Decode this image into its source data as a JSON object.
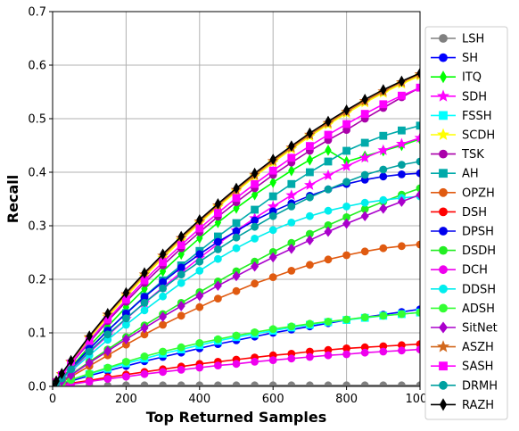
{
  "chart_data": {
    "type": "line",
    "xlabel": "Top Returned Samples",
    "ylabel": "Recall",
    "xlim": [
      0,
      1000
    ],
    "ylim": [
      0,
      0.7
    ],
    "xticks": [
      0,
      200,
      400,
      600,
      800,
      1000
    ],
    "yticks": [
      0.0,
      0.1,
      0.2,
      0.3,
      0.4,
      0.5,
      0.6,
      0.7
    ],
    "grid": true,
    "legend_position": "right",
    "x": [
      0,
      10,
      25,
      50,
      100,
      150,
      200,
      250,
      300,
      350,
      400,
      450,
      500,
      550,
      600,
      650,
      700,
      750,
      800,
      850,
      900,
      950,
      1000
    ],
    "series": [
      {
        "name": "LSH",
        "color": "#808080",
        "marker": "circle",
        "values": [
          0,
          0,
          0,
          0.001,
          0.001,
          0.001,
          0.002,
          0.002,
          0.002,
          0.002,
          0.002,
          0.002,
          0.002,
          0.002,
          0.002,
          0.002,
          0.002,
          0.002,
          0.002,
          0.002,
          0.002,
          0.002,
          0.002
        ]
      },
      {
        "name": "SH",
        "color": "#0000ff",
        "marker": "circle",
        "values": [
          0,
          0.002,
          0.005,
          0.01,
          0.02,
          0.029,
          0.038,
          0.047,
          0.055,
          0.063,
          0.071,
          0.079,
          0.086,
          0.093,
          0.1,
          0.106,
          0.112,
          0.118,
          0.124,
          0.129,
          0.134,
          0.139,
          0.144
        ]
      },
      {
        "name": "ITQ",
        "color": "#00ff00",
        "marker": "diamond-thin",
        "values": [
          0,
          0.005,
          0.015,
          0.035,
          0.075,
          0.112,
          0.148,
          0.182,
          0.215,
          0.247,
          0.277,
          0.306,
          0.333,
          0.358,
          0.381,
          0.403,
          0.423,
          0.441,
          0.42,
          0.43,
          0.44,
          0.45,
          0.462
        ]
      },
      {
        "name": "SDH",
        "color": "#ff00ff",
        "marker": "star",
        "values": [
          0,
          0.005,
          0.013,
          0.03,
          0.063,
          0.095,
          0.126,
          0.156,
          0.185,
          0.213,
          0.24,
          0.266,
          0.291,
          0.314,
          0.336,
          0.357,
          0.376,
          0.394,
          0.411,
          0.427,
          0.441,
          0.453,
          0.464
        ]
      },
      {
        "name": "FSSH",
        "color": "#00ffff",
        "marker": "square",
        "values": [
          0,
          0.002,
          0.006,
          0.012,
          0.023,
          0.033,
          0.043,
          0.052,
          0.061,
          0.069,
          0.077,
          0.085,
          0.092,
          0.098,
          0.104,
          0.11,
          0.115,
          0.12,
          0.124,
          0.128,
          0.132,
          0.135,
          0.138
        ]
      },
      {
        "name": "SCDH",
        "color": "#ffff00",
        "marker": "star",
        "values": [
          0,
          0.009,
          0.022,
          0.045,
          0.09,
          0.13,
          0.168,
          0.205,
          0.24,
          0.273,
          0.305,
          0.335,
          0.364,
          0.392,
          0.418,
          0.443,
          0.467,
          0.489,
          0.51,
          0.53,
          0.548,
          0.565,
          0.58
        ]
      },
      {
        "name": "TSK",
        "color": "#aa00aa",
        "marker": "circle",
        "values": [
          0,
          0.008,
          0.02,
          0.042,
          0.082,
          0.122,
          0.158,
          0.193,
          0.226,
          0.258,
          0.288,
          0.317,
          0.344,
          0.37,
          0.395,
          0.418,
          0.44,
          0.46,
          0.479,
          0.5,
          0.52,
          0.54,
          0.558
        ]
      },
      {
        "name": "AH",
        "color": "#00aaaa",
        "marker": "square",
        "values": [
          0,
          0.006,
          0.016,
          0.034,
          0.07,
          0.104,
          0.137,
          0.168,
          0.198,
          0.226,
          0.253,
          0.28,
          0.305,
          0.33,
          0.355,
          0.378,
          0.4,
          0.42,
          0.44,
          0.455,
          0.468,
          0.478,
          0.487
        ]
      },
      {
        "name": "OPZH",
        "color": "#e05a10",
        "marker": "circle",
        "values": [
          0,
          0.003,
          0.008,
          0.018,
          0.038,
          0.058,
          0.078,
          0.097,
          0.115,
          0.132,
          0.148,
          0.164,
          0.178,
          0.192,
          0.204,
          0.216,
          0.227,
          0.237,
          0.245,
          0.252,
          0.258,
          0.262,
          0.265
        ]
      },
      {
        "name": "DSH",
        "color": "#ff0000",
        "marker": "circle",
        "values": [
          0,
          0.001,
          0.003,
          0.006,
          0.011,
          0.017,
          0.022,
          0.027,
          0.032,
          0.037,
          0.042,
          0.046,
          0.05,
          0.054,
          0.058,
          0.061,
          0.065,
          0.068,
          0.071,
          0.073,
          0.075,
          0.077,
          0.079
        ]
      },
      {
        "name": "DPSH",
        "color": "#0000ee",
        "marker": "circle",
        "values": [
          0,
          0.006,
          0.015,
          0.034,
          0.07,
          0.104,
          0.136,
          0.167,
          0.195,
          0.222,
          0.247,
          0.27,
          0.29,
          0.31,
          0.327,
          0.342,
          0.356,
          0.368,
          0.378,
          0.386,
          0.392,
          0.396,
          0.398
        ]
      },
      {
        "name": "DSDH",
        "color": "#22ee22",
        "marker": "circle",
        "values": [
          0,
          0.004,
          0.01,
          0.022,
          0.046,
          0.069,
          0.092,
          0.114,
          0.135,
          0.156,
          0.176,
          0.196,
          0.215,
          0.233,
          0.251,
          0.268,
          0.285,
          0.301,
          0.316,
          0.331,
          0.345,
          0.358,
          0.37
        ]
      },
      {
        "name": "DCH",
        "color": "#ee00ee",
        "marker": "circle",
        "values": [
          0,
          0.001,
          0.002,
          0.004,
          0.009,
          0.014,
          0.018,
          0.023,
          0.027,
          0.031,
          0.035,
          0.039,
          0.042,
          0.046,
          0.049,
          0.052,
          0.055,
          0.058,
          0.06,
          0.063,
          0.065,
          0.067,
          0.069
        ]
      },
      {
        "name": "DDSH",
        "color": "#00eeee",
        "marker": "circle",
        "values": [
          0,
          0.005,
          0.013,
          0.028,
          0.058,
          0.087,
          0.115,
          0.142,
          0.168,
          0.193,
          0.216,
          0.238,
          0.258,
          0.276,
          0.292,
          0.306,
          0.318,
          0.328,
          0.336,
          0.343,
          0.348,
          0.352,
          0.355
        ]
      },
      {
        "name": "ADSH",
        "color": "#33ff33",
        "marker": "circle",
        "values": [
          0,
          0.002,
          0.006,
          0.012,
          0.024,
          0.035,
          0.046,
          0.056,
          0.065,
          0.073,
          0.081,
          0.088,
          0.095,
          0.101,
          0.107,
          0.112,
          0.117,
          0.121,
          0.125,
          0.129,
          0.132,
          0.135,
          0.138
        ]
      },
      {
        "name": "SitNet",
        "color": "#aa00cc",
        "marker": "diamond",
        "values": [
          0,
          0.004,
          0.01,
          0.021,
          0.044,
          0.066,
          0.088,
          0.109,
          0.13,
          0.15,
          0.169,
          0.188,
          0.206,
          0.224,
          0.241,
          0.257,
          0.273,
          0.289,
          0.304,
          0.318,
          0.332,
          0.345,
          0.358
        ]
      },
      {
        "name": "ASZH",
        "color": "#d2691e",
        "marker": "star",
        "values": [
          0,
          0.009,
          0.023,
          0.046,
          0.092,
          0.134,
          0.172,
          0.209,
          0.244,
          0.277,
          0.308,
          0.338,
          0.367,
          0.395,
          0.421,
          0.446,
          0.47,
          0.492,
          0.513,
          0.533,
          0.551,
          0.568,
          0.583
        ]
      },
      {
        "name": "SASH",
        "color": "#ff00ff",
        "marker": "square",
        "values": [
          0,
          0.008,
          0.021,
          0.043,
          0.085,
          0.125,
          0.162,
          0.198,
          0.232,
          0.264,
          0.295,
          0.324,
          0.352,
          0.378,
          0.403,
          0.427,
          0.449,
          0.47,
          0.49,
          0.509,
          0.527,
          0.543,
          0.558
        ]
      },
      {
        "name": "DRMH",
        "color": "#00a0a0",
        "marker": "circle",
        "values": [
          0,
          0.006,
          0.015,
          0.032,
          0.065,
          0.097,
          0.127,
          0.156,
          0.183,
          0.209,
          0.233,
          0.256,
          0.278,
          0.298,
          0.318,
          0.336,
          0.353,
          0.368,
          0.382,
          0.395,
          0.405,
          0.414,
          0.42
        ]
      },
      {
        "name": "RAZH",
        "color": "#000000",
        "marker": "diamond-thin",
        "values": [
          0,
          0.01,
          0.024,
          0.048,
          0.094,
          0.136,
          0.175,
          0.212,
          0.247,
          0.28,
          0.311,
          0.341,
          0.37,
          0.398,
          0.424,
          0.449,
          0.473,
          0.495,
          0.516,
          0.536,
          0.554,
          0.57,
          0.585
        ]
      }
    ]
  }
}
